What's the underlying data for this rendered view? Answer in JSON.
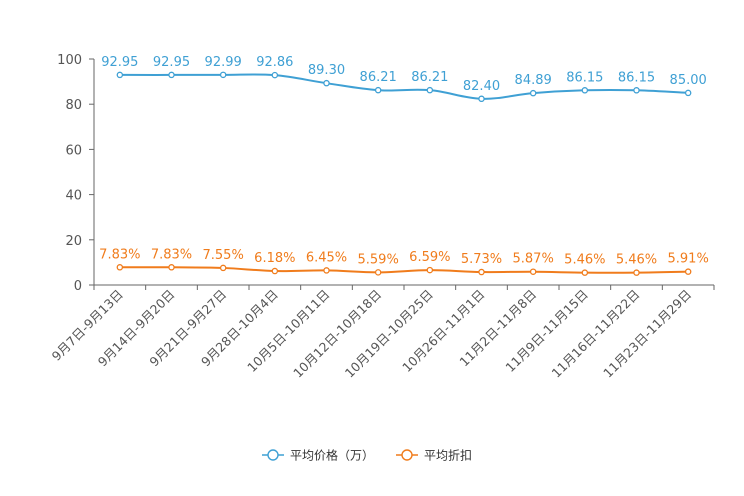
{
  "chart_data": {
    "type": "line",
    "title": "",
    "xlabel": "",
    "ylabel": "",
    "ylim": [
      0,
      100
    ],
    "yticks": [
      0,
      20,
      40,
      60,
      80,
      100
    ],
    "ytick_labels": [
      "0",
      "20",
      "40",
      "60",
      "80",
      "100"
    ],
    "grid": false,
    "legend_position": "bottom-center",
    "categories": [
      "9月7日-9月13日",
      "9月14日-9月20日",
      "9月21日-9月27日",
      "9月28日-10月4日",
      "10月5日-10月11日",
      "10月12日-10月18日",
      "10月19日-10月25日",
      "10月26日-11月1日",
      "11月2日-11月8日",
      "11月9日-11月15日",
      "11月16日-11月22日",
      "11月23日-11月29日"
    ],
    "series": [
      {
        "name": "平均价格（万）",
        "color": "#3fa0d4",
        "values": [
          92.95,
          92.95,
          92.99,
          92.86,
          89.3,
          86.21,
          86.21,
          82.4,
          84.89,
          86.15,
          86.15,
          85.0
        ],
        "labels": [
          "92.95",
          "92.95",
          "92.99",
          "92.86",
          "89.30",
          "86.21",
          "86.21",
          "82.40",
          "84.89",
          "86.15",
          "86.15",
          "85.00"
        ]
      },
      {
        "name": "平均折扣",
        "color": "#f07c1c",
        "values": [
          7.83,
          7.83,
          7.55,
          6.18,
          6.45,
          5.59,
          6.59,
          5.73,
          5.87,
          5.46,
          5.46,
          5.91
        ],
        "labels": [
          "7.83%",
          "7.83%",
          "7.55%",
          "6.18%",
          "6.45%",
          "5.59%",
          "6.59%",
          "5.73%",
          "5.87%",
          "5.46%",
          "5.46%",
          "5.91%"
        ]
      }
    ]
  }
}
